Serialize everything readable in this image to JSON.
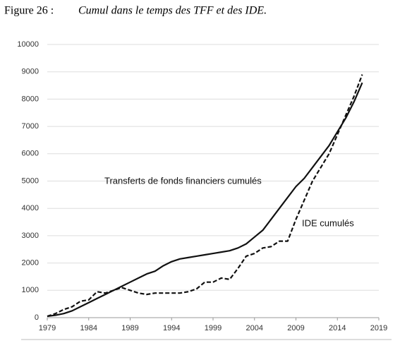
{
  "chart_data": {
    "type": "line",
    "figure": "Figure 26 :",
    "title": "Cumul dans le temps des TFF et des IDE.",
    "x": [
      1979,
      1980,
      1981,
      1982,
      1983,
      1984,
      1985,
      1986,
      1987,
      1988,
      1989,
      1990,
      1991,
      1992,
      1993,
      1994,
      1995,
      1996,
      1997,
      1998,
      1999,
      2000,
      2001,
      2002,
      2003,
      2004,
      2005,
      2006,
      2007,
      2008,
      2009,
      2010,
      2011,
      2012,
      2013,
      2014,
      2015,
      2016,
      2017
    ],
    "series": [
      {
        "name": "Transferts de fonds financiers cumulés",
        "color": "#111111",
        "style": "solid",
        "values": [
          50,
          90,
          150,
          250,
          400,
          550,
          700,
          850,
          1000,
          1150,
          1300,
          1450,
          1600,
          1700,
          1900,
          2050,
          2150,
          2200,
          2250,
          2300,
          2350,
          2400,
          2450,
          2550,
          2700,
          2950,
          3200,
          3600,
          4000,
          4400,
          4800,
          5100,
          5500,
          5900,
          6300,
          6800,
          7300,
          7900,
          8600
        ]
      },
      {
        "name": "IDE cumulés",
        "color": "#111111",
        "style": "dashed",
        "values": [
          50,
          150,
          300,
          400,
          600,
          650,
          950,
          900,
          1000,
          1100,
          1000,
          900,
          850,
          900,
          900,
          900,
          900,
          950,
          1050,
          1300,
          1300,
          1450,
          1400,
          1800,
          2250,
          2350,
          2550,
          2600,
          2800,
          2800,
          3600,
          4300,
          5000,
          5500,
          6000,
          6700,
          7400,
          8100,
          8900
        ]
      }
    ],
    "xlim": [
      1979,
      2019
    ],
    "xticks": [
      1979,
      1984,
      1989,
      1994,
      1999,
      2004,
      2009,
      2014,
      2019
    ],
    "ylim": [
      0,
      10000
    ],
    "yticks": [
      0,
      1000,
      2000,
      3000,
      4000,
      5000,
      6000,
      7000,
      8000,
      9000,
      10000
    ],
    "grid": true
  }
}
